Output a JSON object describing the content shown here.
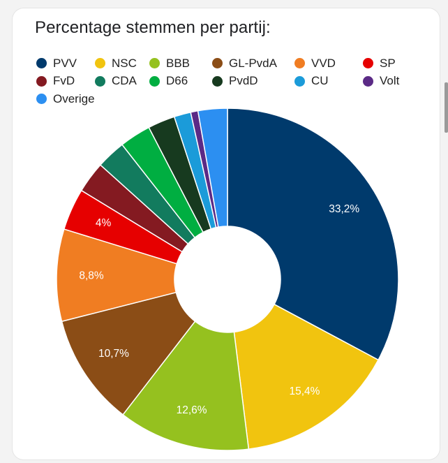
{
  "chart_data": {
    "type": "pie",
    "title": "Percentage stemmen per partij:",
    "legend_position": "top",
    "series": [
      {
        "name": "PVV",
        "value": 33.2,
        "label": "33,2%",
        "color": "#003a6c"
      },
      {
        "name": "NSC",
        "value": 15.4,
        "label": "15,4%",
        "color": "#f1c40f"
      },
      {
        "name": "BBB",
        "value": 12.6,
        "label": "12,6%",
        "color": "#95c11f"
      },
      {
        "name": "GL-PvdA",
        "value": 10.7,
        "label": "10,7%",
        "color": "#8b4d16"
      },
      {
        "name": "VVD",
        "value": 8.8,
        "label": "8,8%",
        "color": "#f07d22"
      },
      {
        "name": "SP",
        "value": 4.0,
        "label": "4%",
        "color": "#e60000"
      },
      {
        "name": "FvD",
        "value": 3.0,
        "label": "",
        "color": "#841a21"
      },
      {
        "name": "CDA",
        "value": 2.8,
        "label": "",
        "color": "#127b5e"
      },
      {
        "name": "D66",
        "value": 3.0,
        "label": "",
        "color": "#00ae41"
      },
      {
        "name": "PvdD",
        "value": 2.6,
        "label": "",
        "color": "#173a1f"
      },
      {
        "name": "CU",
        "value": 1.6,
        "label": "",
        "color": "#1b9bd9"
      },
      {
        "name": "Volt",
        "value": 0.7,
        "label": "",
        "color": "#5b2a86"
      },
      {
        "name": "Overige",
        "value": 2.8,
        "label": "",
        "color": "#2c8ff1"
      }
    ]
  }
}
